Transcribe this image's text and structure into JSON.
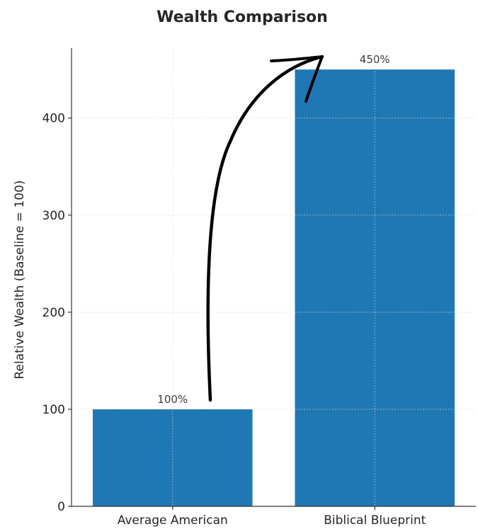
{
  "chart_data": {
    "type": "bar",
    "title": "Wealth Comparison",
    "xlabel": "",
    "ylabel": "Relative Wealth (Baseline = 100)",
    "categories": [
      "Average American",
      "Biblical Blueprint"
    ],
    "values": [
      100,
      450
    ],
    "data_labels": [
      "100%",
      "450%"
    ],
    "yticks": [
      0,
      100,
      200,
      300,
      400
    ],
    "ylim": [
      0,
      472
    ],
    "grid": true,
    "legend": "none",
    "bar_color": "#1f77b4",
    "annotation": "hand-drawn-arrow"
  }
}
